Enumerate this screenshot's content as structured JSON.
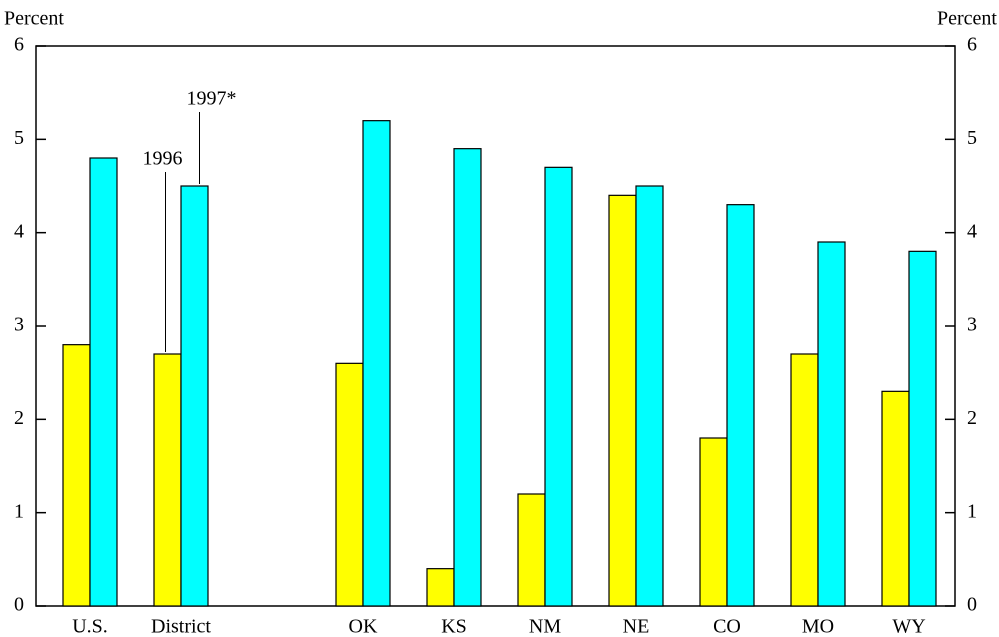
{
  "chart_data": {
    "type": "bar",
    "y_label": "Percent",
    "categories": [
      "U.S.",
      "District",
      null,
      "OK",
      "KS",
      "NM",
      "NE",
      "CO",
      "MO",
      "WY"
    ],
    "series": [
      {
        "name": "1996",
        "color": "#ffff00",
        "values": [
          2.8,
          2.7,
          null,
          2.6,
          0.4,
          1.2,
          4.4,
          1.8,
          2.7,
          2.3
        ]
      },
      {
        "name": "1997*",
        "color": "#00ffff",
        "values": [
          4.8,
          4.5,
          null,
          5.2,
          4.9,
          4.7,
          4.5,
          4.3,
          3.9,
          3.8
        ]
      }
    ],
    "ylim": [
      0,
      6
    ],
    "yticks": [
      0,
      1,
      2,
      3,
      4,
      5,
      6
    ]
  }
}
